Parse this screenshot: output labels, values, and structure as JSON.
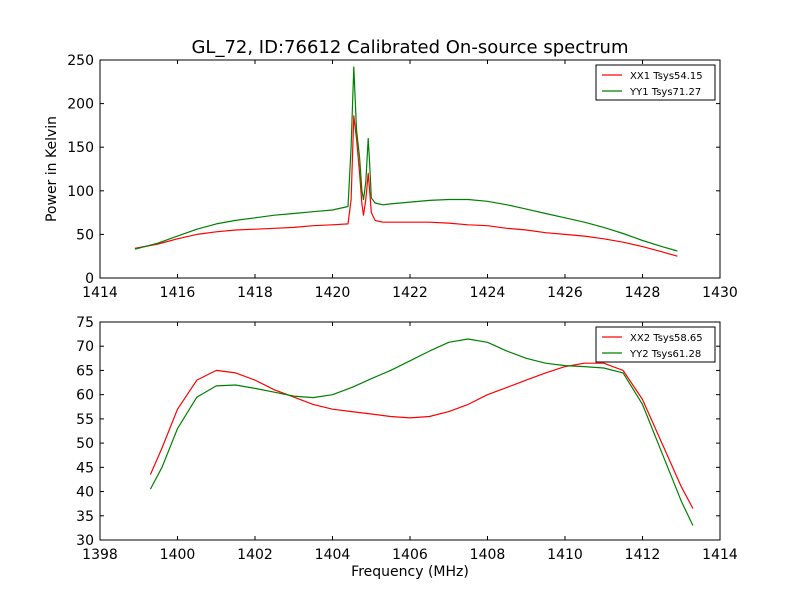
{
  "figure": {
    "title": "GL_72, ID:76612 Calibrated On-source spectrum"
  },
  "chart_data": [
    {
      "type": "line",
      "title": "GL_72, ID:76612 Calibrated On-source spectrum",
      "xlabel": "",
      "ylabel": "Power in Kelvin",
      "xlim": [
        1414,
        1430
      ],
      "ylim": [
        0,
        250
      ],
      "xticks": [
        "1414",
        "1416",
        "1418",
        "1420",
        "1422",
        "1424",
        "1426",
        "1428",
        "1430"
      ],
      "yticks": [
        "0",
        "50",
        "100",
        "150",
        "200",
        "250"
      ],
      "legend_position": "top-right",
      "grid": false,
      "series": [
        {
          "name": "XX1 Tsys54.15",
          "color": "#ff0000",
          "points": [
            [
              1414.9,
              34
            ],
            [
              1415.5,
              39
            ],
            [
              1416.0,
              45
            ],
            [
              1416.5,
              50
            ],
            [
              1417.0,
              53
            ],
            [
              1417.5,
              55
            ],
            [
              1418.0,
              56
            ],
            [
              1418.5,
              57
            ],
            [
              1419.0,
              58
            ],
            [
              1419.5,
              60
            ],
            [
              1420.0,
              61
            ],
            [
              1420.4,
              62
            ],
            [
              1420.48,
              90
            ],
            [
              1420.55,
              186
            ],
            [
              1420.62,
              160
            ],
            [
              1420.7,
              120
            ],
            [
              1420.76,
              85
            ],
            [
              1420.8,
              72
            ],
            [
              1420.86,
              90
            ],
            [
              1420.92,
              120
            ],
            [
              1420.96,
              100
            ],
            [
              1421.0,
              75
            ],
            [
              1421.1,
              66
            ],
            [
              1421.3,
              64
            ],
            [
              1422.0,
              64
            ],
            [
              1422.5,
              64
            ],
            [
              1423.0,
              63
            ],
            [
              1423.5,
              61
            ],
            [
              1424.0,
              60
            ],
            [
              1424.5,
              57
            ],
            [
              1425.0,
              55
            ],
            [
              1425.5,
              52
            ],
            [
              1426.0,
              50
            ],
            [
              1426.5,
              48
            ],
            [
              1427.0,
              45
            ],
            [
              1427.5,
              41
            ],
            [
              1428.0,
              36
            ],
            [
              1428.5,
              30
            ],
            [
              1428.9,
              25
            ]
          ]
        },
        {
          "name": "YY1 Tsys71.27",
          "color": "#008000",
          "points": [
            [
              1414.9,
              33
            ],
            [
              1415.5,
              40
            ],
            [
              1416.0,
              48
            ],
            [
              1416.5,
              56
            ],
            [
              1417.0,
              62
            ],
            [
              1417.5,
              66
            ],
            [
              1418.0,
              69
            ],
            [
              1418.5,
              72
            ],
            [
              1419.0,
              74
            ],
            [
              1419.5,
              76
            ],
            [
              1420.0,
              78
            ],
            [
              1420.4,
              82
            ],
            [
              1420.48,
              150
            ],
            [
              1420.55,
              242
            ],
            [
              1420.62,
              170
            ],
            [
              1420.7,
              138
            ],
            [
              1420.76,
              100
            ],
            [
              1420.8,
              90
            ],
            [
              1420.86,
              110
            ],
            [
              1420.92,
              160
            ],
            [
              1420.96,
              130
            ],
            [
              1421.0,
              92
            ],
            [
              1421.1,
              86
            ],
            [
              1421.3,
              84
            ],
            [
              1421.5,
              85
            ],
            [
              1422.0,
              87
            ],
            [
              1422.5,
              89
            ],
            [
              1423.0,
              90
            ],
            [
              1423.5,
              90
            ],
            [
              1424.0,
              88
            ],
            [
              1424.5,
              84
            ],
            [
              1425.0,
              79
            ],
            [
              1425.5,
              74
            ],
            [
              1426.0,
              69
            ],
            [
              1426.5,
              64
            ],
            [
              1427.0,
              58
            ],
            [
              1427.5,
              51
            ],
            [
              1428.0,
              43
            ],
            [
              1428.5,
              36
            ],
            [
              1428.9,
              31
            ]
          ]
        }
      ]
    },
    {
      "type": "line",
      "title": "",
      "xlabel": "Frequency (MHz)",
      "ylabel": "",
      "xlim": [
        1398,
        1414
      ],
      "ylim": [
        30,
        75
      ],
      "xticks": [
        "1398",
        "1400",
        "1402",
        "1404",
        "1406",
        "1408",
        "1410",
        "1412",
        "1414"
      ],
      "yticks": [
        "30",
        "35",
        "40",
        "45",
        "50",
        "55",
        "60",
        "65",
        "70",
        "75"
      ],
      "legend_position": "top-right",
      "grid": false,
      "series": [
        {
          "name": "XX2 Tsys58.65",
          "color": "#ff0000",
          "points": [
            [
              1399.3,
              43.5
            ],
            [
              1399.6,
              49
            ],
            [
              1400.0,
              57
            ],
            [
              1400.5,
              63
            ],
            [
              1401.0,
              65
            ],
            [
              1401.5,
              64.5
            ],
            [
              1402.0,
              63
            ],
            [
              1402.5,
              61
            ],
            [
              1403.0,
              59.5
            ],
            [
              1403.5,
              58
            ],
            [
              1404.0,
              57
            ],
            [
              1404.5,
              56.5
            ],
            [
              1405.0,
              56
            ],
            [
              1405.5,
              55.5
            ],
            [
              1406.0,
              55.2
            ],
            [
              1406.5,
              55.5
            ],
            [
              1407.0,
              56.5
            ],
            [
              1407.5,
              58
            ],
            [
              1408.0,
              60
            ],
            [
              1408.5,
              61.5
            ],
            [
              1409.0,
              63
            ],
            [
              1409.5,
              64.5
            ],
            [
              1410.0,
              65.8
            ],
            [
              1410.5,
              66.5
            ],
            [
              1411.0,
              66.5
            ],
            [
              1411.5,
              65
            ],
            [
              1412.0,
              59
            ],
            [
              1412.5,
              50
            ],
            [
              1413.0,
              41
            ],
            [
              1413.3,
              36.5
            ]
          ]
        },
        {
          "name": "YY2 Tsys61.28",
          "color": "#008000",
          "points": [
            [
              1399.3,
              40.5
            ],
            [
              1399.6,
              45
            ],
            [
              1400.0,
              53
            ],
            [
              1400.5,
              59.5
            ],
            [
              1401.0,
              61.8
            ],
            [
              1401.5,
              62
            ],
            [
              1402.0,
              61.3
            ],
            [
              1402.5,
              60.5
            ],
            [
              1403.0,
              59.7
            ],
            [
              1403.5,
              59.4
            ],
            [
              1404.0,
              60
            ],
            [
              1404.5,
              61.5
            ],
            [
              1405.0,
              63.3
            ],
            [
              1405.5,
              65
            ],
            [
              1406.0,
              67
            ],
            [
              1406.5,
              69
            ],
            [
              1407.0,
              70.8
            ],
            [
              1407.5,
              71.5
            ],
            [
              1408.0,
              70.8
            ],
            [
              1408.5,
              69
            ],
            [
              1409.0,
              67.5
            ],
            [
              1409.5,
              66.5
            ],
            [
              1410.0,
              66
            ],
            [
              1410.5,
              65.8
            ],
            [
              1411.0,
              65.5
            ],
            [
              1411.5,
              64.5
            ],
            [
              1412.0,
              58
            ],
            [
              1412.5,
              48
            ],
            [
              1413.0,
              38
            ],
            [
              1413.3,
              33
            ]
          ]
        }
      ]
    }
  ]
}
